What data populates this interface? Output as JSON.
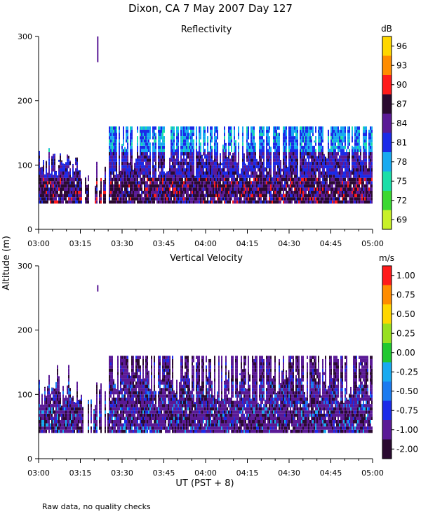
{
  "figure": {
    "title": "Dixon, CA  7 May 2007  Day 127",
    "ylabel": "Altitude (m)",
    "xlabel": "UT  (PST + 8)",
    "footnote": "Raw data, no quality checks"
  },
  "chart_data": [
    {
      "type": "heatmap",
      "title": "Reflectivity",
      "ylabel": "Altitude (m)",
      "xlabel": "UT  (PST + 8)",
      "ylim": [
        0,
        300
      ],
      "yticks": [
        "0",
        "100",
        "200",
        "300"
      ],
      "xlim": [
        "03:00",
        "05:00"
      ],
      "xticks": [
        "03:00",
        "03:15",
        "03:30",
        "03:45",
        "04:00",
        "04:15",
        "04:30",
        "04:45",
        "05:00"
      ],
      "colorbar": {
        "unit": "dB",
        "labels": [
          "96",
          "93",
          "90",
          "87",
          "84",
          "81",
          "78",
          "75",
          "72",
          "69"
        ],
        "colors": [
          "#FFD700",
          "#FF8C00",
          "#FF1A1A",
          "#2A0A30",
          "#5A1A96",
          "#1A2AE8",
          "#18AAF0",
          "#1ADEA8",
          "#3AD830",
          "#C8F028"
        ]
      },
      "data_coverage": {
        "base_altitude_m": 40,
        "typical_top_before_0315_m": 120,
        "typical_top_after_0325_m": 160,
        "isolated_echo": {
          "time": "03:21",
          "altitude_m": [
            260,
            300
          ]
        }
      }
    },
    {
      "type": "heatmap",
      "title": "Vertical Velocity",
      "ylabel": "Altitude (m)",
      "xlabel": "UT  (PST + 8)",
      "ylim": [
        0,
        300
      ],
      "yticks": [
        "0",
        "100",
        "200",
        "300"
      ],
      "xlim": [
        "03:00",
        "05:00"
      ],
      "xticks": [
        "03:00",
        "03:15",
        "03:30",
        "03:45",
        "04:00",
        "04:15",
        "04:30",
        "04:45",
        "05:00"
      ],
      "colorbar": {
        "unit": "m/s",
        "labels": [
          "1.00",
          "0.75",
          "0.50",
          "0.25",
          "0.00",
          "-0.25",
          "-0.50",
          "-0.75",
          "-1.00",
          "-2.00"
        ],
        "colors": [
          "#FF1A1A",
          "#FF8C00",
          "#FFD700",
          "#98E020",
          "#20C830",
          "#18AAF0",
          "#1A7AF0",
          "#1A2AE8",
          "#5A1A96",
          "#2A0A30"
        ]
      },
      "data_coverage": {
        "base_altitude_m": 40,
        "typical_top_before_0315_m": 120,
        "typical_top_after_0325_m": 160,
        "isolated_echo": {
          "time": "03:21",
          "altitude_m": [
            260,
            270
          ]
        }
      }
    }
  ]
}
